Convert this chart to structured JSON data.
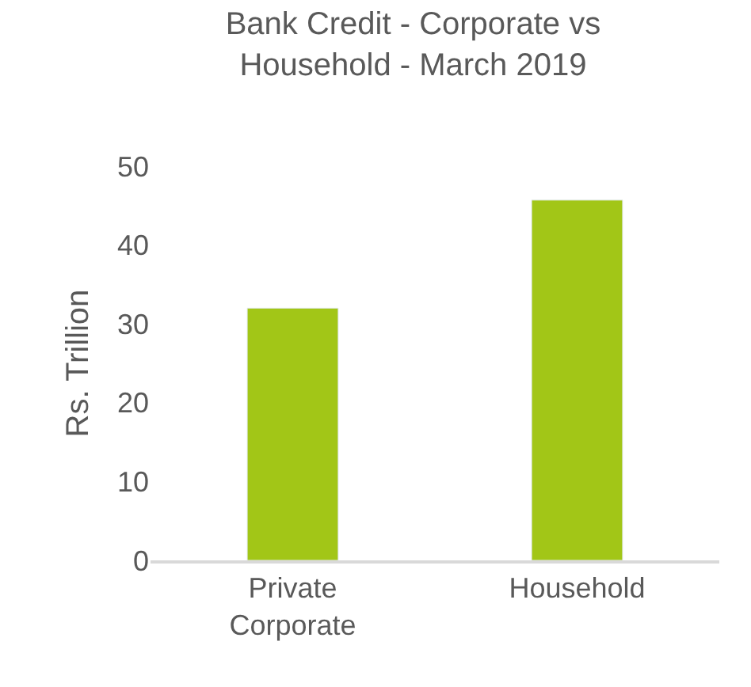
{
  "chart_data": {
    "type": "bar",
    "title": "Bank Credit - Corporate vs Household - March 2019",
    "ylabel": "Rs. Trillion",
    "categories": [
      "Private Corporate",
      "Household"
    ],
    "values": [
      32,
      45.7
    ],
    "color": "#a2c617",
    "ylim": [
      0,
      50
    ],
    "yticks": [
      0,
      10,
      20,
      30,
      40,
      50
    ],
    "grid": false,
    "legend": false
  }
}
